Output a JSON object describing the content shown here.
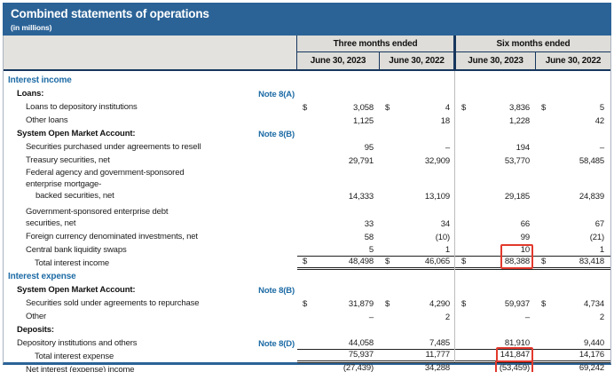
{
  "title": "Combined statements of operations",
  "subtitle": "(in millions)",
  "colors": {
    "title_bar": "#2b6397",
    "section_text": "#1d6ba5",
    "header_cell": "#deddd9",
    "highlight_red": "#e2392d"
  },
  "header": {
    "groups": [
      {
        "label": "Three months ended",
        "cols": [
          "June 30, 2023",
          "June 30, 2022"
        ]
      },
      {
        "label": "Six months ended",
        "cols": [
          "June 30, 2023",
          "June 30, 2022"
        ]
      }
    ]
  },
  "rows": [
    {
      "t": "section",
      "label": "Interest income",
      "ind": 0
    },
    {
      "t": "subhead",
      "label": "Loans:",
      "note": "Note 8(A)",
      "ind": 1
    },
    {
      "t": "data",
      "label": "Loans to depository institutions",
      "ind": 2,
      "d": true,
      "v": [
        "3,058",
        "4",
        "3,836",
        "5"
      ]
    },
    {
      "t": "data",
      "label": "Other loans",
      "ind": 2,
      "v": [
        "1,125",
        "18",
        "1,228",
        "42"
      ]
    },
    {
      "t": "subhead",
      "label": "System Open Market Account:",
      "note": "Note 8(B)",
      "ind": 1
    },
    {
      "t": "data",
      "label": "Securities purchased under agreements to resell",
      "ind": 2,
      "v": [
        "95",
        "–",
        "194",
        "–"
      ]
    },
    {
      "t": "data",
      "label": "Treasury securities, net",
      "ind": 2,
      "v": [
        "29,791",
        "32,909",
        "53,770",
        "58,485"
      ]
    },
    {
      "t": "data",
      "label": "Federal agency and government-sponsored enterprise mortgage-",
      "label2": "backed securities, net",
      "ind": 2,
      "v": [
        "14,333",
        "13,109",
        "29,185",
        "24,839"
      ]
    },
    {
      "t": "data",
      "label": "Government-sponsored enterprise debt securities, net",
      "ind": 2,
      "gap": true,
      "v": [
        "33",
        "34",
        "66",
        "67"
      ]
    },
    {
      "t": "data",
      "label": "Foreign currency denominated investments, net",
      "ind": 2,
      "v": [
        "58",
        "(10)",
        "99",
        "(21)"
      ]
    },
    {
      "t": "data",
      "label": "Central bank liquidity swaps",
      "ind": 2,
      "rule": true,
      "v": [
        "5",
        "1",
        "10",
        "1"
      ]
    },
    {
      "t": "data",
      "label": "Total interest income",
      "ind": 3,
      "d": true,
      "dbl": true,
      "red": 2,
      "redTall": true,
      "v": [
        "48,498",
        "46,065",
        "88,388",
        "83,418"
      ]
    },
    {
      "t": "section",
      "label": "Interest expense",
      "ind": 0
    },
    {
      "t": "subhead",
      "label": "System Open Market Account:",
      "note": "Note 8(B)",
      "ind": 1
    },
    {
      "t": "data",
      "label": "Securities sold under agreements to repurchase",
      "ind": 2,
      "d": true,
      "v": [
        "31,879",
        "4,290",
        "59,937",
        "4,734"
      ]
    },
    {
      "t": "data",
      "label": "Other",
      "ind": 2,
      "v": [
        "–",
        "2",
        "–",
        "2"
      ]
    },
    {
      "t": "subhead",
      "label": "Deposits:",
      "ind": 1
    },
    {
      "t": "data",
      "label": "Depository institutions and others",
      "ind": 1,
      "note": "Note 8(D)",
      "rule": true,
      "v": [
        "44,058",
        "7,485",
        "81,910",
        "9,440"
      ]
    },
    {
      "t": "data",
      "label": "Total interest expense",
      "ind": 3,
      "dbl": true,
      "red": 2,
      "v": [
        "75,937",
        "11,777",
        "141,847",
        "14,176"
      ]
    },
    {
      "t": "data",
      "label": "Net interest (expense) income",
      "ind": 2,
      "dbl": true,
      "red": 2,
      "v": [
        "(27,439)",
        "34,288",
        "(53,459)",
        "69,242"
      ]
    }
  ]
}
